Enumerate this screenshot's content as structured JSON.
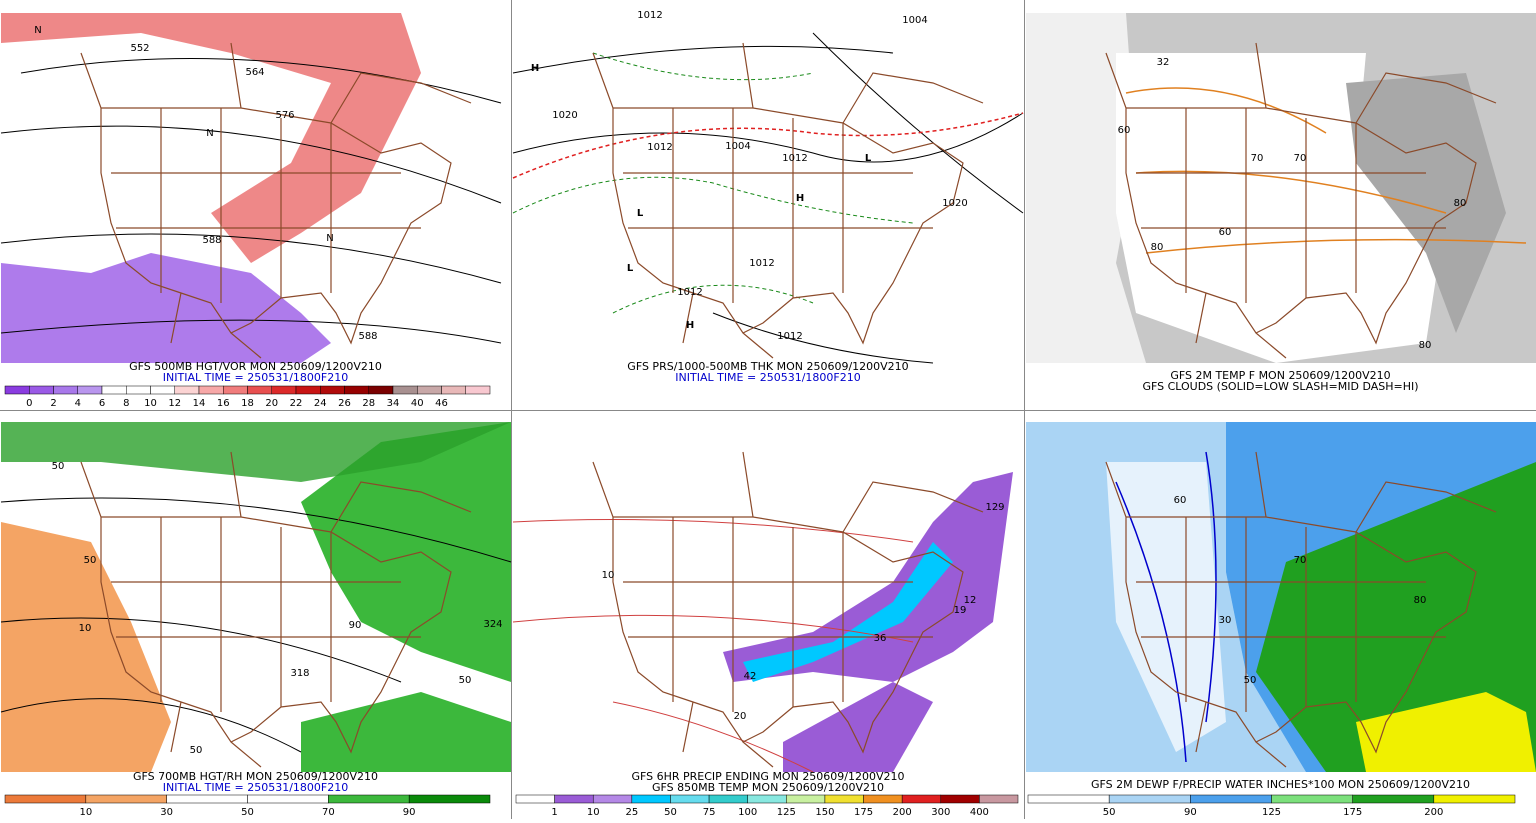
{
  "panels": [
    {
      "captions": [
        "GFS 500MB HGT/VOR MON 250609/1200V210",
        "INITIAL TIME = 250531/1800F210"
      ],
      "caption_colors": [
        "#000000",
        "#0000cc"
      ],
      "colorbar": {
        "colors": [
          "#8a3ce0",
          "#9a5ae6",
          "#a878ea",
          "#b996ee",
          "#ffffff",
          "#ffffff",
          "#ffffff",
          "#fbd3d3",
          "#f7a8a8",
          "#f07c7c",
          "#e85050",
          "#dc2a2a",
          "#c81414",
          "#b00a0a",
          "#960000",
          "#7a0000",
          "#a89090",
          "#c8a8a8",
          "#e8b8b8",
          "#f8c8d0"
        ],
        "labels": [
          0,
          2,
          4,
          6,
          8,
          10,
          12,
          14,
          16,
          18,
          20,
          22,
          24,
          26,
          28,
          34,
          40,
          46
        ]
      },
      "map_labels": [
        "552",
        "564",
        "576",
        "588",
        "588",
        "N",
        "N",
        "N"
      ]
    },
    {
      "captions": [
        "GFS PRS/1000-500MB THK MON 250609/1200V210",
        "INITIAL TIME = 250531/1800F210"
      ],
      "caption_colors": [
        "#000000",
        "#0000cc"
      ],
      "map_labels": [
        "1012",
        "1004",
        "1020",
        "1012",
        "1004",
        "1012",
        "1020",
        "1012",
        "1012",
        "1012",
        "H",
        "H",
        "H",
        "L",
        "L",
        "L"
      ]
    },
    {
      "captions": [
        "GFS 2M TEMP F MON 250609/1200V210",
        "GFS CLOUDS (SOLID=LOW SLASH=MID DASH=HI)"
      ],
      "caption_colors": [
        "#000000",
        "#000000"
      ],
      "map_labels": [
        "32",
        "60",
        "70",
        "80",
        "70",
        "80",
        "80",
        "60"
      ]
    },
    {
      "captions": [
        "GFS 700MB HGT/RH MON 250609/1200V210",
        "INITIAL TIME = 250531/1800F210"
      ],
      "caption_colors": [
        "#000000",
        "#0000cc"
      ],
      "colorbar": {
        "colors": [
          "#ec7a3a",
          "#f4a464",
          "#ffffff",
          "#ffffff",
          "#3cb83c",
          "#0a8a0a"
        ],
        "labels": [
          10,
          30,
          50,
          70,
          90
        ]
      },
      "map_labels": [
        "50",
        "50",
        "10",
        "50",
        "50",
        "324",
        "318",
        "90"
      ]
    },
    {
      "captions": [
        "GFS 6HR PRECIP ENDING MON 250609/1200V210",
        "GFS 850MB TEMP MON 250609/1200V210"
      ],
      "caption_colors": [
        "#000000",
        "#000000"
      ],
      "colorbar": {
        "colors": [
          "#ffffff",
          "#9a5cd6",
          "#b488e6",
          "#00c8ff",
          "#66dcee",
          "#33cccc",
          "#88e8e0",
          "#c8f0a0",
          "#f0e030",
          "#f09020",
          "#e02020",
          "#a00000",
          "#c898a0"
        ],
        "labels": [
          1,
          10,
          25,
          50,
          75,
          100,
          125,
          150,
          175,
          200,
          300,
          400
        ]
      },
      "map_labels": [
        "10",
        "20",
        "12",
        "129",
        "19",
        "42",
        "36"
      ]
    },
    {
      "captions": [
        "GFS 2M DEWP F/PRECIP WATER INCHES*100 MON 250609/1200V210"
      ],
      "caption_colors": [
        "#000000"
      ],
      "colorbar": {
        "colors": [
          "#ffffff",
          "#aad4f4",
          "#4ca0ec",
          "#7ce07c",
          "#20a020",
          "#f0f000"
        ],
        "labels": [
          50,
          90,
          125,
          175,
          200
        ]
      },
      "map_labels": [
        "30",
        "50",
        "60",
        "70",
        "80"
      ]
    }
  ]
}
